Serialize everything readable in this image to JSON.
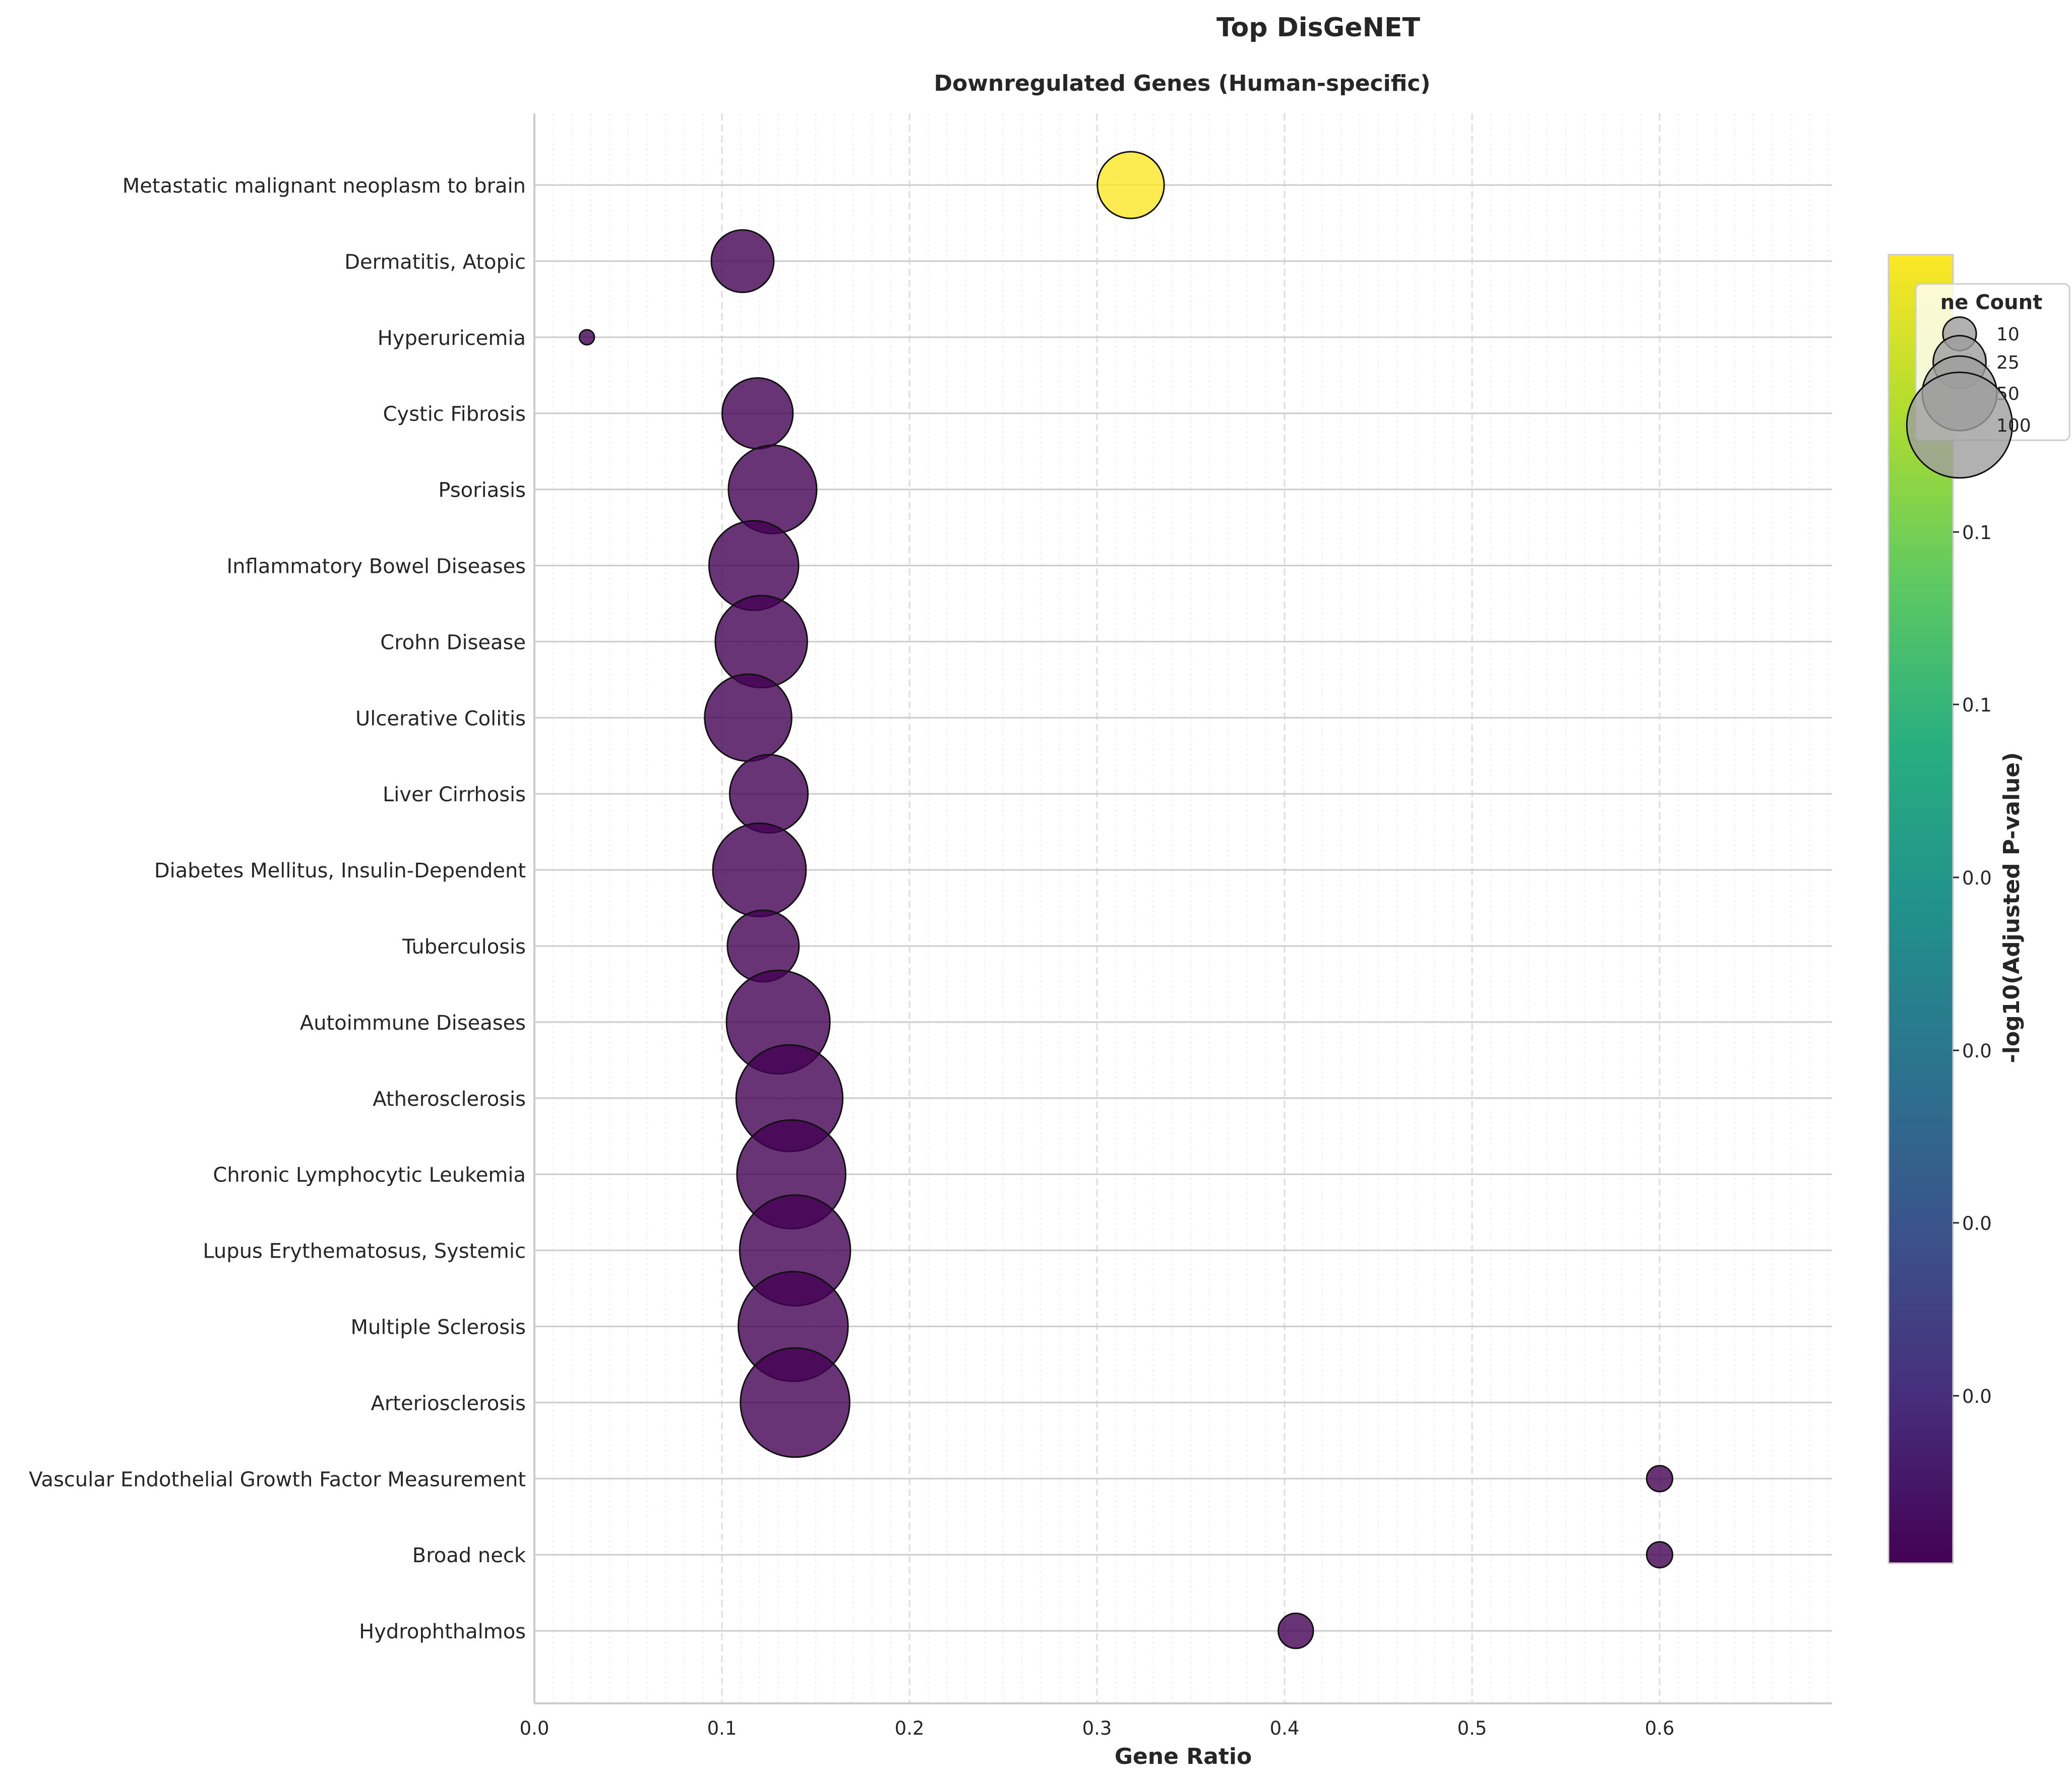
{
  "figure": {
    "title": "Top DisGeNET",
    "subtitle": "Downregulated Genes (Human-specific)"
  },
  "chart_data": {
    "type": "scatter",
    "title": "Downregulated Genes (Human-specific)",
    "xlabel": "Gene Ratio",
    "ylabel": "",
    "xlim": [
      0.0,
      0.69
    ],
    "xticks": [
      "0.0",
      "0.1",
      "0.2",
      "0.3",
      "0.4",
      "0.5",
      "0.6"
    ],
    "grid": true,
    "categories": [
      "Metastatic malignant neoplasm to brain",
      "Dermatitis, Atopic",
      "Hyperuricemia",
      "Cystic Fibrosis",
      "Psoriasis",
      "Inflammatory Bowel Diseases",
      "Crohn Disease",
      "Ulcerative Colitis",
      "Liver Cirrhosis",
      "Diabetes Mellitus, Insulin-Dependent",
      "Tuberculosis",
      "Autoimmune Diseases",
      "Atherosclerosis",
      "Chronic Lymphocytic Leukemia",
      "Lupus Erythematosus, Systemic",
      "Multiple Sclerosis",
      "Arteriosclerosis",
      "Vascular Endothelial Growth Factor Measurement",
      "Broad neck",
      "Hydrophthalmos"
    ],
    "points": [
      {
        "term": "Metastatic malignant neoplasm to brain",
        "gene_ratio": 0.318,
        "gene_count": 40,
        "neg_log10_padj": 0.1
      },
      {
        "term": "Dermatitis, Atopic",
        "gene_ratio": 0.111,
        "gene_count": 35,
        "neg_log10_padj": 0.0
      },
      {
        "term": "Hyperuricemia",
        "gene_ratio": 0.028,
        "gene_count": 2,
        "neg_log10_padj": 0.0
      },
      {
        "term": "Cystic Fibrosis",
        "gene_ratio": 0.119,
        "gene_count": 45,
        "neg_log10_padj": 0.0
      },
      {
        "term": "Psoriasis",
        "gene_ratio": 0.127,
        "gene_count": 70,
        "neg_log10_padj": 0.0
      },
      {
        "term": "Inflammatory Bowel Diseases",
        "gene_ratio": 0.117,
        "gene_count": 72,
        "neg_log10_padj": 0.0
      },
      {
        "term": "Crohn Disease",
        "gene_ratio": 0.121,
        "gene_count": 76,
        "neg_log10_padj": 0.0
      },
      {
        "term": "Ulcerative Colitis",
        "gene_ratio": 0.114,
        "gene_count": 68,
        "neg_log10_padj": 0.0
      },
      {
        "term": "Liver Cirrhosis",
        "gene_ratio": 0.125,
        "gene_count": 55,
        "neg_log10_padj": 0.0
      },
      {
        "term": "Diabetes Mellitus, Insulin-Dependent",
        "gene_ratio": 0.12,
        "gene_count": 78,
        "neg_log10_padj": 0.0
      },
      {
        "term": "Tuberculosis",
        "gene_ratio": 0.122,
        "gene_count": 46,
        "neg_log10_padj": 0.0
      },
      {
        "term": "Autoimmune Diseases",
        "gene_ratio": 0.13,
        "gene_count": 96,
        "neg_log10_padj": 0.0
      },
      {
        "term": "Atherosclerosis",
        "gene_ratio": 0.136,
        "gene_count": 102,
        "neg_log10_padj": 0.0
      },
      {
        "term": "Chronic Lymphocytic Leukemia",
        "gene_ratio": 0.137,
        "gene_count": 106,
        "neg_log10_padj": 0.0
      },
      {
        "term": "Lupus Erythematosus, Systemic",
        "gene_ratio": 0.139,
        "gene_count": 110,
        "neg_log10_padj": 0.0
      },
      {
        "term": "Multiple Sclerosis",
        "gene_ratio": 0.138,
        "gene_count": 108,
        "neg_log10_padj": 0.0
      },
      {
        "term": "Arteriosclerosis",
        "gene_ratio": 0.139,
        "gene_count": 107,
        "neg_log10_padj": 0.0
      },
      {
        "term": "Vascular Endothelial Growth Factor Measurement",
        "gene_ratio": 0.6,
        "gene_count": 6,
        "neg_log10_padj": 0.0
      },
      {
        "term": "Broad neck",
        "gene_ratio": 0.6,
        "gene_count": 6,
        "neg_log10_padj": 0.0
      },
      {
        "term": "Hydrophthalmos",
        "gene_ratio": 0.406,
        "gene_count": 11,
        "neg_log10_padj": 0.0
      }
    ],
    "colorbar": {
      "label": "-log10(Adjusted P-value)",
      "colormap": "viridis",
      "tick_labels": [
        "0.1",
        "0.1",
        "0.1",
        "0.0",
        "0.0",
        "0.0",
        "0.0"
      ]
    },
    "size_legend": {
      "title": "Gene Count",
      "title_visible": "ne Count",
      "entries": [
        10,
        25,
        50,
        100
      ],
      "placement": "right"
    },
    "colors": {
      "low": "#440154",
      "high": "#fde725",
      "grid": "#e5e5e5",
      "row_line": "#cccccc",
      "text": "#262626"
    }
  }
}
